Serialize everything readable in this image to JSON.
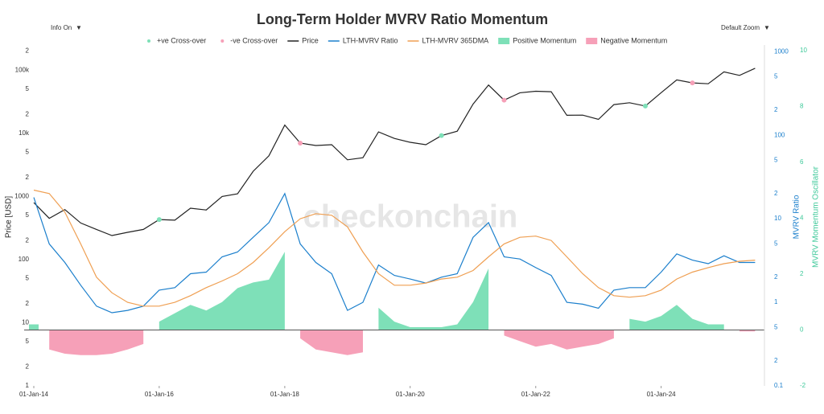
{
  "ui": {
    "info_toggle": "Info On",
    "zoom": "Default Zoom",
    "dropdown_icon": "▼",
    "watermark": "checkonchain"
  },
  "chart_data": {
    "type": "line",
    "title": "Long-Term Holder MVRV Ratio Momentum",
    "y_label": "Price [USD]",
    "y2_label": "MVRV Ratio",
    "y3_label": "MVRV Momentum Oscillator",
    "xlim": [
      "2014-01-01",
      "2025-08-01"
    ],
    "xticks": [
      {
        "value": "2014-01-01",
        "label": "01-Jan-14"
      },
      {
        "value": "2016-01-01",
        "label": "01-Jan-16"
      },
      {
        "value": "2018-01-01",
        "label": "01-Jan-18"
      },
      {
        "value": "2020-01-01",
        "label": "01-Jan-20"
      },
      {
        "value": "2022-01-01",
        "label": "01-Jan-22"
      },
      {
        "value": "2024-01-01",
        "label": "01-Jan-24"
      }
    ],
    "ylim": [
      1,
      250000
    ],
    "y_scale": "log",
    "yticks": [
      1,
      2,
      5,
      10,
      {
        "value": 20,
        "label": "2"
      },
      {
        "value": 50,
        "label": "5"
      },
      100,
      {
        "value": 200,
        "label": "2"
      },
      {
        "value": 500,
        "label": "5"
      },
      1000,
      {
        "value": 2000,
        "label": "2"
      },
      {
        "value": 5000,
        "label": "5"
      },
      {
        "value": 10000,
        "label": "10k"
      },
      {
        "value": 20000,
        "label": "2"
      },
      {
        "value": 50000,
        "label": "5"
      },
      {
        "value": 100000,
        "label": "100k"
      },
      {
        "value": 200000,
        "label": "2"
      }
    ],
    "y2lim": [
      0.1,
      1200
    ],
    "y2_scale": "log",
    "y2ticks": [
      0.1,
      {
        "value": 0.2,
        "label": "2"
      },
      {
        "value": 0.5,
        "label": "5"
      },
      1,
      2,
      5,
      10,
      {
        "value": 20,
        "label": "2"
      },
      {
        "value": 50,
        "label": "5"
      },
      100,
      {
        "value": 200,
        "label": "2"
      },
      {
        "value": 500,
        "label": "5"
      },
      1000
    ],
    "y3lim": [
      -2,
      10.2
    ],
    "y3ticks": [
      -2,
      0,
      2,
      4,
      6,
      8,
      10
    ],
    "x": [
      "2014-01-01",
      "2014-04-01",
      "2014-07-01",
      "2014-10-01",
      "2015-01-01",
      "2015-04-01",
      "2015-07-01",
      "2015-10-01",
      "2016-01-01",
      "2016-04-01",
      "2016-07-01",
      "2016-10-01",
      "2017-01-01",
      "2017-04-01",
      "2017-07-01",
      "2017-10-01",
      "2018-01-01",
      "2018-04-01",
      "2018-07-01",
      "2018-10-01",
      "2019-01-01",
      "2019-04-01",
      "2019-07-01",
      "2019-10-01",
      "2020-01-01",
      "2020-04-01",
      "2020-07-01",
      "2020-10-01",
      "2021-01-01",
      "2021-04-01",
      "2021-07-01",
      "2021-10-01",
      "2022-01-01",
      "2022-04-01",
      "2022-07-01",
      "2022-10-01",
      "2023-01-01",
      "2023-04-01",
      "2023-07-01",
      "2023-10-01",
      "2024-01-01",
      "2024-04-01",
      "2024-07-01",
      "2024-10-01",
      "2025-01-01",
      "2025-04-01",
      "2025-07-01"
    ],
    "series": [
      {
        "name": "+ve Cross-over",
        "type": "scatter",
        "axis": "y",
        "color": "#7ee0b8",
        "x": [
          "2016-01-01",
          "2020-07-01",
          "2023-10-01"
        ],
        "values": [
          430,
          9200,
          27000
        ]
      },
      {
        "name": "-ve Cross-over",
        "type": "scatter",
        "axis": "y",
        "color": "#f6a0b8",
        "x": [
          "2018-04-01",
          "2021-07-01",
          "2024-07-01"
        ],
        "values": [
          7000,
          33500,
          62800
        ]
      },
      {
        "name": "Price",
        "type": "line",
        "axis": "y",
        "color": "#222222",
        "values": [
          800,
          450,
          620,
          380,
          300,
          240,
          270,
          300,
          430,
          420,
          650,
          610,
          1000,
          1100,
          2500,
          4400,
          13500,
          7000,
          6400,
          6600,
          3800,
          4100,
          10500,
          8300,
          7200,
          6600,
          9200,
          10800,
          29000,
          58000,
          33500,
          43800,
          46300,
          45500,
          19300,
          19400,
          16600,
          28500,
          30500,
          27000,
          44000,
          70000,
          62800,
          60800,
          94000,
          82500,
          107000
        ]
      },
      {
        "name": "LTH-MVRV Ratio",
        "type": "line",
        "axis": "y2",
        "color": "#1b7fcc",
        "values": [
          18,
          5,
          3,
          1.6,
          0.9,
          0.75,
          0.8,
          0.9,
          1.4,
          1.5,
          2.2,
          2.3,
          3.5,
          4,
          6,
          9,
          20,
          5,
          3,
          2.2,
          0.8,
          1.0,
          2.8,
          2.1,
          1.9,
          1.7,
          2.0,
          2.2,
          6,
          9,
          3.5,
          3.3,
          2.6,
          2.1,
          1.0,
          0.95,
          0.85,
          1.4,
          1.5,
          1.5,
          2.3,
          3.8,
          3.2,
          2.9,
          3.6,
          3.0,
          3.0
        ]
      },
      {
        "name": "LTH-MVRV 365DMA",
        "type": "line",
        "axis": "y2",
        "color": "#ef9f52",
        "values": [
          22,
          20,
          12,
          5,
          2,
          1.3,
          1.0,
          0.9,
          0.9,
          1.0,
          1.2,
          1.5,
          1.8,
          2.2,
          3,
          4.5,
          7,
          10,
          11.5,
          11,
          8,
          4,
          2.2,
          1.6,
          1.6,
          1.7,
          1.9,
          2.0,
          2.4,
          3.5,
          5,
          6,
          6.2,
          5.5,
          3.5,
          2.2,
          1.5,
          1.2,
          1.15,
          1.2,
          1.4,
          1.9,
          2.3,
          2.6,
          2.9,
          3.1,
          3.2
        ]
      },
      {
        "name": "Positive Momentum",
        "type": "area",
        "axis": "y3",
        "color": "#7ee0b8",
        "values": [
          0.2,
          null,
          null,
          null,
          null,
          null,
          null,
          null,
          0.3,
          0.6,
          0.9,
          0.7,
          1.0,
          1.5,
          1.7,
          1.8,
          2.8,
          null,
          null,
          null,
          null,
          null,
          0.8,
          0.3,
          0.1,
          0.1,
          0.1,
          0.2,
          1.0,
          2.2,
          null,
          null,
          null,
          null,
          null,
          null,
          null,
          null,
          0.4,
          0.3,
          0.5,
          0.9,
          0.4,
          0.2,
          0.2,
          null,
          null
        ]
      },
      {
        "name": "Negative Momentum",
        "type": "area",
        "axis": "y3",
        "color": "#f6a0b8",
        "values": [
          null,
          -0.7,
          -0.85,
          -0.9,
          -0.9,
          -0.85,
          -0.7,
          -0.5,
          null,
          null,
          null,
          null,
          null,
          null,
          null,
          null,
          null,
          -0.3,
          -0.7,
          -0.8,
          -0.9,
          -0.8,
          null,
          null,
          null,
          null,
          null,
          null,
          null,
          null,
          -0.2,
          -0.4,
          -0.6,
          -0.5,
          -0.7,
          -0.6,
          -0.5,
          -0.3,
          null,
          null,
          null,
          null,
          null,
          null,
          null,
          -0.05,
          -0.05
        ]
      }
    ]
  }
}
